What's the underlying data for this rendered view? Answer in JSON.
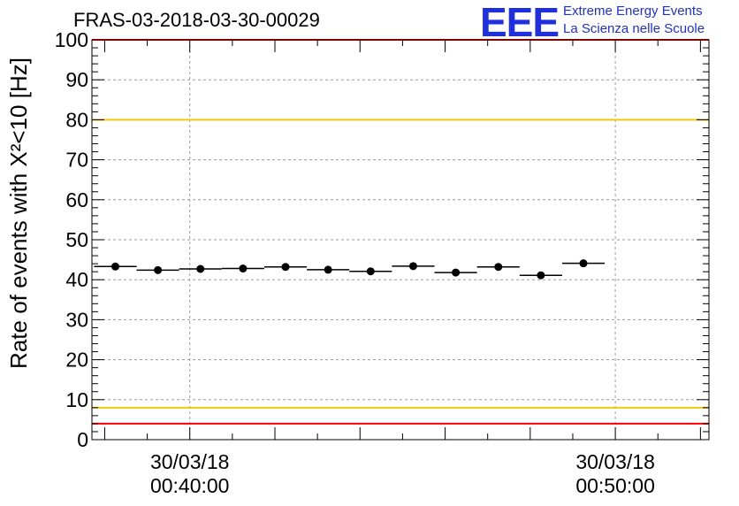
{
  "title": "FRAS-03-2018-03-30-00029",
  "logo": {
    "letters": "EEE",
    "line1": "Extreme Energy Events",
    "line2": "La Scienza nelle Scuole",
    "color": "#1f2fe0"
  },
  "chart_data": {
    "type": "scatter",
    "ylabel": "Rate of events with X²<10 [Hz]",
    "ylim": [
      0,
      100
    ],
    "yticks": [
      0,
      10,
      20,
      30,
      40,
      50,
      60,
      70,
      80,
      90,
      100
    ],
    "xlim_minutes": [
      37.7,
      52.2
    ],
    "xticks": [
      {
        "minute": 40,
        "date": "30/03/18",
        "time": "00:40:00"
      },
      {
        "minute": 50,
        "date": "30/03/18",
        "time": "00:50:00"
      }
    ],
    "grid": true,
    "points": [
      {
        "x": 38.25,
        "y": 43.3
      },
      {
        "x": 39.25,
        "y": 42.4
      },
      {
        "x": 40.25,
        "y": 42.7
      },
      {
        "x": 41.25,
        "y": 42.8
      },
      {
        "x": 42.25,
        "y": 43.2
      },
      {
        "x": 43.25,
        "y": 42.5
      },
      {
        "x": 44.25,
        "y": 42.1
      },
      {
        "x": 45.25,
        "y": 43.4
      },
      {
        "x": 46.25,
        "y": 41.8
      },
      {
        "x": 47.25,
        "y": 43.2
      },
      {
        "x": 48.25,
        "y": 41.1
      },
      {
        "x": 49.25,
        "y": 44.1
      }
    ],
    "bin_half_width_minutes": 0.5,
    "reference_lines": [
      {
        "y": 100,
        "color": "#ff0000"
      },
      {
        "y": 80,
        "color": "#f2c80f"
      },
      {
        "y": 8,
        "color": "#f2c80f"
      },
      {
        "y": 4,
        "color": "#ff0000"
      }
    ]
  }
}
